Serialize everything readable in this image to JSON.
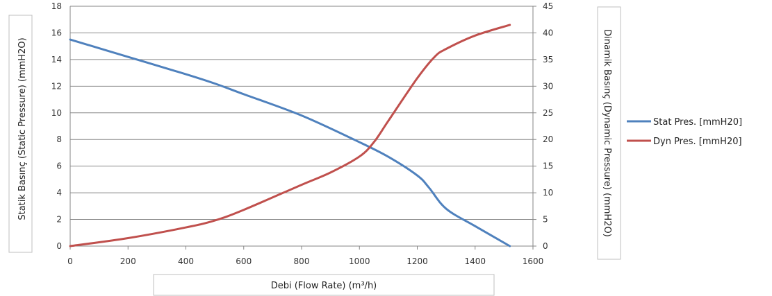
{
  "chart_data": {
    "type": "line",
    "x_axis": {
      "label": "Debi (Flow Rate) (m³/h)",
      "range": [
        0,
        1600
      ],
      "ticks": [
        0,
        200,
        400,
        600,
        800,
        1000,
        1200,
        1400,
        1600
      ]
    },
    "y_left": {
      "label": "Statik Basınç (Static Pressure) (mmH2O)",
      "range": [
        0,
        18
      ],
      "ticks": [
        0,
        2,
        4,
        6,
        8,
        10,
        12,
        14,
        16,
        18
      ]
    },
    "y_right": {
      "label": "Dinamik Basınç (Dynamic Pressure) (mmH2O)",
      "range": [
        0,
        45
      ],
      "ticks": [
        0,
        5,
        10,
        15,
        20,
        25,
        30,
        35,
        40,
        45
      ]
    },
    "grid": "horizontal",
    "legend_position": "right",
    "series": [
      {
        "name": "Stat Pres. [mmH20]",
        "axis": "left",
        "color": "#4f81bd",
        "x": [
          0,
          200,
          400,
          500,
          600,
          800,
          1000,
          1100,
          1200,
          1240,
          1300,
          1400,
          1520
        ],
        "y": [
          15.5,
          14.2,
          12.9,
          12.2,
          11.4,
          9.8,
          7.8,
          6.7,
          5.3,
          4.4,
          2.8,
          1.5,
          0.0
        ]
      },
      {
        "name": "Dyn Pres. [mmH20]",
        "axis": "right",
        "color": "#c0504d",
        "x": [
          0,
          200,
          400,
          500,
          600,
          800,
          900,
          1000,
          1050,
          1100,
          1200,
          1260,
          1300,
          1400,
          1520
        ],
        "y": [
          0.0,
          1.5,
          3.5,
          4.8,
          6.8,
          11.5,
          13.8,
          16.8,
          19.5,
          23.5,
          31.5,
          35.5,
          37.0,
          39.5,
          41.5
        ]
      }
    ]
  }
}
